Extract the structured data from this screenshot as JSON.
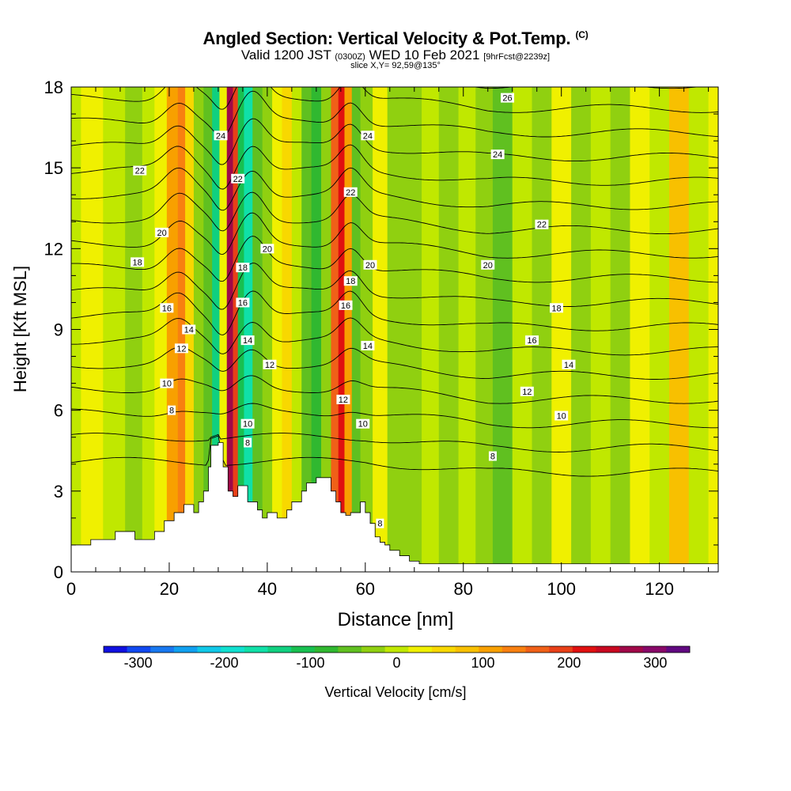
{
  "header": {
    "title": "Angled Section: Vertical Velocity & Pot.Temp.",
    "title_unit": "(C)",
    "valid_main": "Valid 1200 JST",
    "valid_utc": "(0300Z)",
    "valid_date": "WED 10 Feb 2021",
    "forecast": "[9hrFcst@2239z]",
    "slice": "slice X,Y= 92,59@135°"
  },
  "chart_data": {
    "type": "heatmap",
    "xlabel": "Distance [nm]",
    "ylabel": "Height [Kft MSL]",
    "xlim": [
      0,
      132
    ],
    "ylim": [
      0,
      18
    ],
    "x_ticks": [
      "0",
      "20",
      "40",
      "60",
      "80",
      "100",
      "120"
    ],
    "y_ticks": [
      "0",
      "3",
      "6",
      "9",
      "12",
      "15",
      "18"
    ],
    "colorbar": {
      "label": "Vertical Velocity [cm/s]",
      "ticks": [
        "-300",
        "-200",
        "-100",
        "0",
        "100",
        "200",
        "300"
      ],
      "range": [
        -340,
        340
      ],
      "colors": [
        "#1010e0",
        "#1048f0",
        "#1878f0",
        "#10a0f0",
        "#10c8e8",
        "#10e0d0",
        "#10e0a8",
        "#10d080",
        "#18c050",
        "#30b830",
        "#60c020",
        "#90d010",
        "#c0e800",
        "#f0f000",
        "#f8d800",
        "#f8c000",
        "#f8a000",
        "#f88010",
        "#f06018",
        "#e84018",
        "#e01010",
        "#c80820",
        "#a00848",
        "#880868",
        "#600880"
      ]
    },
    "velocity_columns": [
      {
        "x": 0,
        "v": 10
      },
      {
        "x": 4,
        "v": 15
      },
      {
        "x": 9,
        "v": 5
      },
      {
        "x": 13,
        "v": -30
      },
      {
        "x": 16,
        "v": -10
      },
      {
        "x": 18,
        "v": 30
      },
      {
        "x": 21,
        "v": 110
      },
      {
        "x": 22.5,
        "v": 140
      },
      {
        "x": 24,
        "v": 60
      },
      {
        "x": 26,
        "v": -40
      },
      {
        "x": 28,
        "v": -60
      },
      {
        "x": 29.5,
        "v": -140
      },
      {
        "x": 31,
        "v": 40
      },
      {
        "x": 32.5,
        "v": 280
      },
      {
        "x": 33.5,
        "v": 180
      },
      {
        "x": 34.5,
        "v": -120
      },
      {
        "x": 36,
        "v": -150
      },
      {
        "x": 38,
        "v": -60
      },
      {
        "x": 40,
        "v": -20
      },
      {
        "x": 42,
        "v": 20
      },
      {
        "x": 44,
        "v": 60
      },
      {
        "x": 46,
        "v": 10
      },
      {
        "x": 48,
        "v": -60
      },
      {
        "x": 50,
        "v": -80
      },
      {
        "x": 52,
        "v": -20
      },
      {
        "x": 54,
        "v": 150
      },
      {
        "x": 55,
        "v": 230
      },
      {
        "x": 56.5,
        "v": 120
      },
      {
        "x": 58,
        "v": -60
      },
      {
        "x": 60,
        "v": -20
      },
      {
        "x": 63,
        "v": 20
      },
      {
        "x": 66,
        "v": -20
      },
      {
        "x": 70,
        "v": -40
      },
      {
        "x": 73,
        "v": 10
      },
      {
        "x": 77,
        "v": -30
      },
      {
        "x": 81,
        "v": 10
      },
      {
        "x": 84,
        "v": -20
      },
      {
        "x": 88,
        "v": -50
      },
      {
        "x": 92,
        "v": 0
      },
      {
        "x": 96,
        "v": -30
      },
      {
        "x": 100,
        "v": 20
      },
      {
        "x": 104,
        "v": -20
      },
      {
        "x": 108,
        "v": 10
      },
      {
        "x": 112,
        "v": -20
      },
      {
        "x": 116,
        "v": 40
      },
      {
        "x": 120,
        "v": -10
      },
      {
        "x": 124,
        "v": 80
      },
      {
        "x": 128,
        "v": 10
      },
      {
        "x": 132,
        "v": 20
      }
    ],
    "terrain": {
      "x": [
        0,
        4,
        9,
        13,
        17,
        19,
        21,
        23,
        25,
        26,
        27,
        28,
        28.5,
        30,
        31,
        32,
        33,
        34,
        36,
        38,
        39,
        40,
        42,
        44,
        45,
        47,
        48,
        50,
        51,
        53,
        54,
        55,
        56,
        57,
        59,
        60,
        61,
        62,
        63,
        64,
        65,
        67,
        69,
        71,
        72,
        80,
        90,
        100,
        110,
        120,
        132
      ],
      "y": [
        1.0,
        1.2,
        1.5,
        1.2,
        1.5,
        1.9,
        2.2,
        2.5,
        2.2,
        2.6,
        3.0,
        3.9,
        4.7,
        4.8,
        3.9,
        3.0,
        2.8,
        3.2,
        2.6,
        2.3,
        2.0,
        2.2,
        2.0,
        2.3,
        2.6,
        3.0,
        3.3,
        3.5,
        3.5,
        3.0,
        2.6,
        2.2,
        2.1,
        2.2,
        2.6,
        2.2,
        1.8,
        1.3,
        1.1,
        1.0,
        0.8,
        0.6,
        0.4,
        0.3,
        0.3,
        0.3,
        0.3,
        0.3,
        0.3,
        0.3,
        0.3
      ]
    },
    "isentropes": {
      "levels": [
        6,
        7,
        8,
        9,
        10,
        11,
        12,
        13,
        14,
        15,
        16,
        17,
        18,
        19,
        20,
        21,
        22,
        23,
        24,
        25,
        26
      ],
      "labeled": [
        {
          "text": "8",
          "x": 20.5,
          "y": 6.0
        },
        {
          "text": "10",
          "x": 19.5,
          "y": 7.0
        },
        {
          "text": "12",
          "x": 22.5,
          "y": 8.3
        },
        {
          "text": "14",
          "x": 24,
          "y": 9.0
        },
        {
          "text": "16",
          "x": 19.5,
          "y": 9.8
        },
        {
          "text": "18",
          "x": 13.5,
          "y": 11.5
        },
        {
          "text": "20",
          "x": 18.5,
          "y": 12.6
        },
        {
          "text": "22",
          "x": 14,
          "y": 14.9
        },
        {
          "text": "24",
          "x": 30.5,
          "y": 16.2
        },
        {
          "text": "22",
          "x": 34,
          "y": 14.6
        },
        {
          "text": "20",
          "x": 40,
          "y": 12.0
        },
        {
          "text": "18",
          "x": 35,
          "y": 11.3
        },
        {
          "text": "16",
          "x": 35,
          "y": 10.0
        },
        {
          "text": "14",
          "x": 36,
          "y": 8.6
        },
        {
          "text": "12",
          "x": 40.5,
          "y": 7.7
        },
        {
          "text": "10",
          "x": 36,
          "y": 5.5
        },
        {
          "text": "8",
          "x": 36,
          "y": 4.8
        },
        {
          "text": "24",
          "x": 60.5,
          "y": 16.2
        },
        {
          "text": "22",
          "x": 57,
          "y": 14.1
        },
        {
          "text": "20",
          "x": 61,
          "y": 11.4
        },
        {
          "text": "18",
          "x": 57,
          "y": 10.8
        },
        {
          "text": "16",
          "x": 56,
          "y": 9.9
        },
        {
          "text": "14",
          "x": 60.5,
          "y": 8.4
        },
        {
          "text": "12",
          "x": 55.5,
          "y": 6.4
        },
        {
          "text": "10",
          "x": 59.5,
          "y": 5.5
        },
        {
          "text": "8",
          "x": 63,
          "y": 1.8
        },
        {
          "text": "26",
          "x": 89,
          "y": 17.6
        },
        {
          "text": "24",
          "x": 87,
          "y": 15.5
        },
        {
          "text": "22",
          "x": 96,
          "y": 12.9
        },
        {
          "text": "20",
          "x": 85,
          "y": 11.4
        },
        {
          "text": "18",
          "x": 99,
          "y": 9.8
        },
        {
          "text": "16",
          "x": 94,
          "y": 8.6
        },
        {
          "text": "14",
          "x": 101.5,
          "y": 7.7
        },
        {
          "text": "12",
          "x": 93,
          "y": 6.7
        },
        {
          "text": "10",
          "x": 100,
          "y": 5.8
        },
        {
          "text": "8",
          "x": 86,
          "y": 4.3
        }
      ]
    }
  }
}
